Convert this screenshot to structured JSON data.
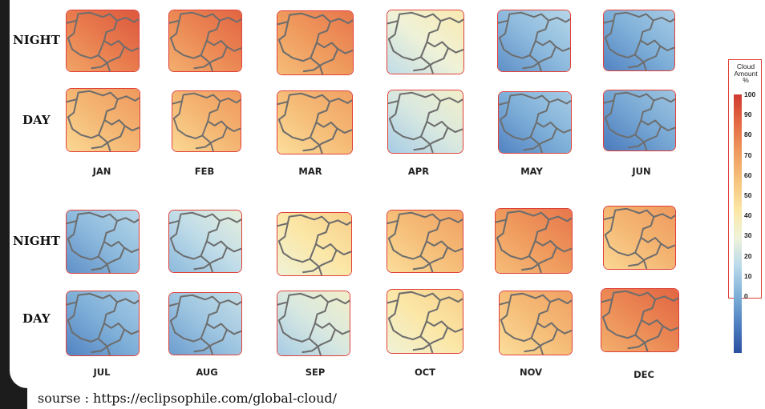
{
  "row_labels": {
    "night": "NIGHT",
    "day": "DAY"
  },
  "months": [
    "JAN",
    "FEB",
    "MAR",
    "APR",
    "MAY",
    "JUN",
    "JUL",
    "AUG",
    "SEP",
    "OCT",
    "NOV",
    "DEC"
  ],
  "cloud_amount": {
    "night": [
      85,
      82,
      78,
      45,
      25,
      22,
      25,
      35,
      55,
      68,
      78,
      70
    ],
    "day": [
      70,
      70,
      68,
      40,
      22,
      20,
      22,
      28,
      40,
      55,
      68,
      82
    ]
  },
  "legend": {
    "title_line1": "Cloud",
    "title_line2": "Amount",
    "title_line3": "%",
    "ticks": [
      "100",
      "90",
      "80",
      "70",
      "60",
      "50",
      "40",
      "30",
      "20",
      "10",
      "0"
    ],
    "colors": [
      "#2a4fa0",
      "#4f7fc0",
      "#7fb0d8",
      "#b8d8ea",
      "#eef3da",
      "#fce6a4",
      "#f6c27c",
      "#ef9a5e",
      "#e46a44",
      "#cf3a30"
    ]
  },
  "source": "sourse :  https://eclipsophile.com/global-cloud/"
}
